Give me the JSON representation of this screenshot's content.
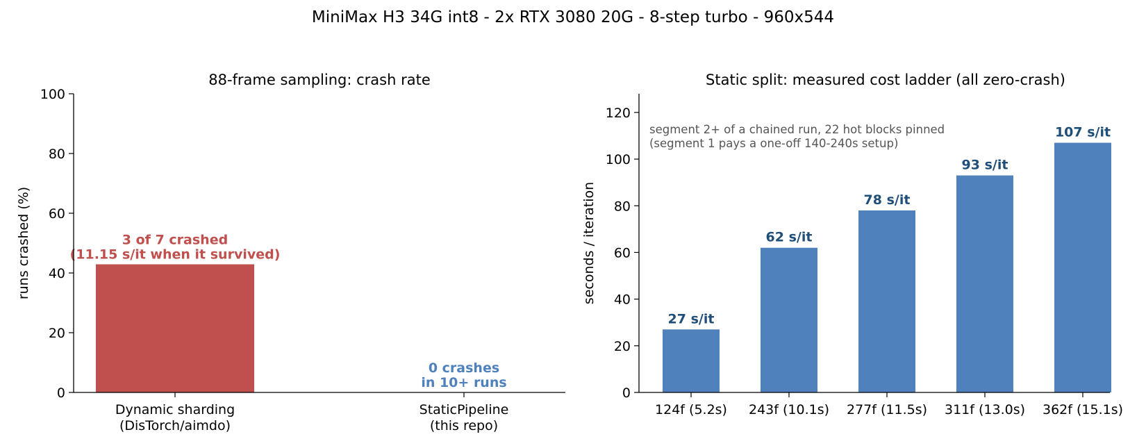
{
  "figure": {
    "title": "MiniMax H3 34G int8 - 2x RTX 3080 20G - 8-step turbo - 960x544"
  },
  "chart_data": [
    {
      "type": "bar",
      "title": "88-frame sampling: crash rate",
      "xlabel": "",
      "ylabel": "runs crashed (%)",
      "ylim": [
        0,
        100
      ],
      "yticks": [
        "0",
        "20",
        "40",
        "60",
        "80",
        "100"
      ],
      "categories": [
        [
          "Dynamic sharding",
          "(DisTorch/aimdo)"
        ],
        [
          "StaticPipeline",
          "(this repo)"
        ]
      ],
      "values": [
        42.9,
        0
      ],
      "bar_colors": [
        "#c0504d",
        "#4f81bd"
      ],
      "annotations": [
        {
          "lines": [
            "3 of 7 crashed",
            "(11.15 s/it when it survived)"
          ],
          "color": "#c0504d"
        },
        {
          "lines": [
            "0 crashes",
            "in 10+ runs"
          ],
          "color": "#4f81bd"
        }
      ],
      "grid": false
    },
    {
      "type": "bar",
      "title": "Static split: measured cost ladder (all zero-crash)",
      "xlabel": "",
      "ylabel": "seconds / iteration",
      "ylim": [
        0,
        128
      ],
      "yticks": [
        "0",
        "20",
        "40",
        "60",
        "80",
        "100",
        "120"
      ],
      "categories": [
        "124f (5.2s)",
        "243f (10.1s)",
        "277f (11.5s)",
        "311f (13.0s)",
        "362f (15.1s)"
      ],
      "values": [
        27,
        62,
        78,
        93,
        107
      ],
      "data_labels": [
        "27 s/it",
        "62 s/it",
        "78 s/it",
        "93 s/it",
        "107 s/it"
      ],
      "bar_color": "#4f81bd",
      "label_color": "#1f4e79",
      "note": [
        "segment 2+ of a chained run, 22 hot blocks pinned",
        "(segment 1 pays a one-off 140-240s setup)"
      ],
      "note_color": "#555555",
      "grid": false
    }
  ]
}
